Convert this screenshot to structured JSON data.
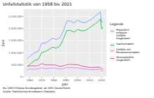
{
  "chart_data": {
    "type": "line",
    "title": "Unfallstatistik von 1958 bis 2021",
    "x_label": "Jahr",
    "y_label": "Zahl",
    "legend_title": "Legende",
    "annotations": [
      "Bis 1990 früheres Bundesgebiet, ab 1991 Deutschland",
      "Quelle: Statistisches Bundesamt (Destatis)"
    ],
    "x": [
      1958,
      1961,
      1964,
      1967,
      1970,
      1973,
      1976,
      1979,
      1982,
      1985,
      1988,
      1991,
      1994,
      1997,
      2000,
      2003,
      2006,
      2009,
      2012,
      2015,
      2018,
      2019,
      2020,
      2021
    ],
    "series": [
      {
        "name": "Polizeilich erfasste Unfälle insgesamt",
        "color": "#619cff",
        "values": [
          750000,
          900000,
          1000000,
          1050000,
          1390000,
          1400000,
          1500000,
          1600000,
          1550000,
          1600000,
          1900000,
          2310000,
          2310000,
          2230000,
          2350000,
          2260000,
          2240000,
          2310000,
          2400000,
          2520000,
          2640000,
          2690000,
          2250000,
          2310000
        ]
      },
      {
        "name": "Sachschaden",
        "color": "#00ba38",
        "values": [
          450000,
          560000,
          680000,
          720000,
          1010000,
          1050000,
          1140000,
          1230000,
          1190000,
          1270000,
          1560000,
          1920000,
          1920000,
          1850000,
          1960000,
          1910000,
          1910000,
          2000000,
          2100000,
          2210000,
          2330000,
          2390000,
          1980000,
          2050000
        ]
      },
      {
        "name": "Unfälle mit Personenschaden",
        "color": "#c77cff",
        "values": [
          300000,
          330000,
          320000,
          330000,
          380000,
          350000,
          360000,
          370000,
          360000,
          330000,
          340000,
          390000,
          390000,
          380000,
          380000,
          350000,
          330000,
          310000,
          300000,
          310000,
          310000,
          300000,
          260000,
          260000
        ]
      },
      {
        "name": "Verunglückte insgesamt",
        "color": "#e7298a",
        "values": [
          440000,
          470000,
          460000,
          470000,
          550000,
          500000,
          500000,
          500000,
          490000,
          440000,
          460000,
          510000,
          520000,
          510000,
          510000,
          460000,
          430000,
          400000,
          390000,
          400000,
          400000,
          390000,
          330000,
          330000
        ]
      }
    ],
    "xlim": [
      1955,
      2024
    ],
    "xticks": [
      1960,
      1970,
      1980,
      1990,
      2000,
      2010,
      2020
    ],
    "ylim": [
      0,
      2800000
    ],
    "yticks": [
      0,
      {
        "value": 500000,
        "label": "500.000"
      },
      {
        "value": 1000000,
        "label": "1.000.000"
      },
      {
        "value": 1500000,
        "label": "1.500.000"
      },
      {
        "value": 2000000,
        "label": "2.000.000"
      },
      {
        "value": 2500000,
        "label": "2.500.000"
      }
    ],
    "grid": true,
    "legend": "right"
  }
}
